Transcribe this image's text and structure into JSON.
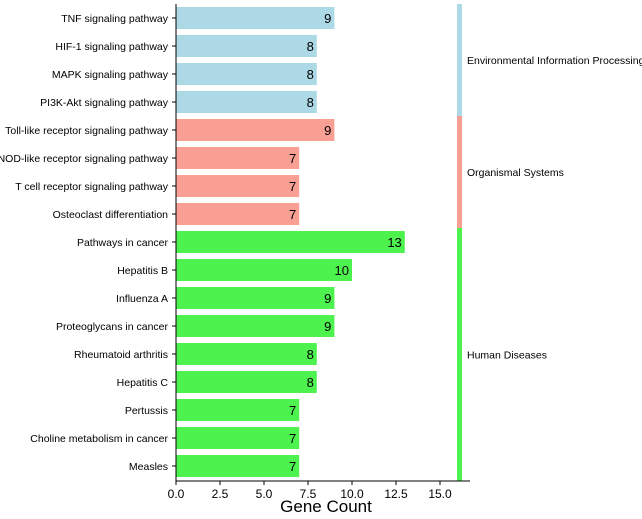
{
  "chart_data": {
    "type": "bar",
    "orientation": "horizontal",
    "xlabel": "Gene Count",
    "ylabel": "",
    "xlim": [
      0,
      17.5
    ],
    "xticks": [
      0.0,
      2.5,
      5.0,
      7.5,
      10.0,
      12.5,
      15.0
    ],
    "xtick_labels": [
      "0.0",
      "2.5",
      "5.0",
      "7.5",
      "10.0",
      "12.5",
      "15.0"
    ],
    "categories": [
      "TNF signaling pathway",
      "HIF-1 signaling pathway",
      "MAPK signaling pathway",
      "PI3K-Akt signaling pathway",
      "Toll-like receptor signaling pathway",
      "NOD-like receptor signaling pathway",
      "T cell receptor signaling pathway",
      "Osteoclast differentiation",
      "Pathways in cancer",
      "Hepatitis B",
      "Influenza A",
      "Proteoglycans in cancer",
      "Rheumatoid arthritis",
      "Hepatitis C",
      "Pertussis",
      "Choline metabolism in cancer",
      "Measles"
    ],
    "values": [
      9,
      8,
      8,
      8,
      9,
      7,
      7,
      7,
      13,
      10,
      9,
      9,
      8,
      8,
      7,
      7,
      7
    ],
    "groups": [
      {
        "name": "Environmental Information Processing",
        "start": 0,
        "count": 4,
        "color": "#add8e6"
      },
      {
        "name": "Organismal Systems",
        "start": 4,
        "count": 4,
        "color": "#fa9f94"
      },
      {
        "name": "Human Diseases",
        "start": 8,
        "count": 9,
        "color": "#4ef24e"
      }
    ]
  }
}
